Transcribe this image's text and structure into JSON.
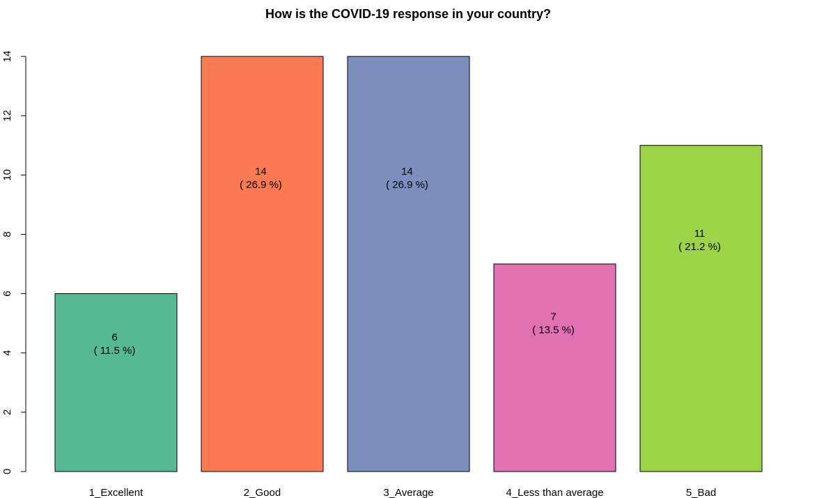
{
  "chart_data": {
    "type": "bar",
    "title": "How is the COVID-19 response in your country?",
    "xlabel": "",
    "ylabel": "",
    "ylim": [
      0,
      14
    ],
    "yticks": [
      0,
      2,
      4,
      6,
      8,
      10,
      12,
      14
    ],
    "categories": [
      "1_Excellent",
      "2_Good",
      "3_Average",
      "4_Less than average",
      "5_Bad"
    ],
    "values": [
      6,
      14,
      14,
      7,
      11
    ],
    "value_labels": [
      "6",
      "14",
      "14",
      "7",
      "11"
    ],
    "percent_labels": [
      "( 11.5 %)",
      "( 26.9 %)",
      "( 26.9 %)",
      "( 13.5 %)",
      "( 21.2 %)"
    ],
    "colors": [
      "#57B993",
      "#F97A53",
      "#7C8EBE",
      "#E072B4",
      "#9BD547"
    ],
    "grid": false,
    "legend": "none"
  }
}
